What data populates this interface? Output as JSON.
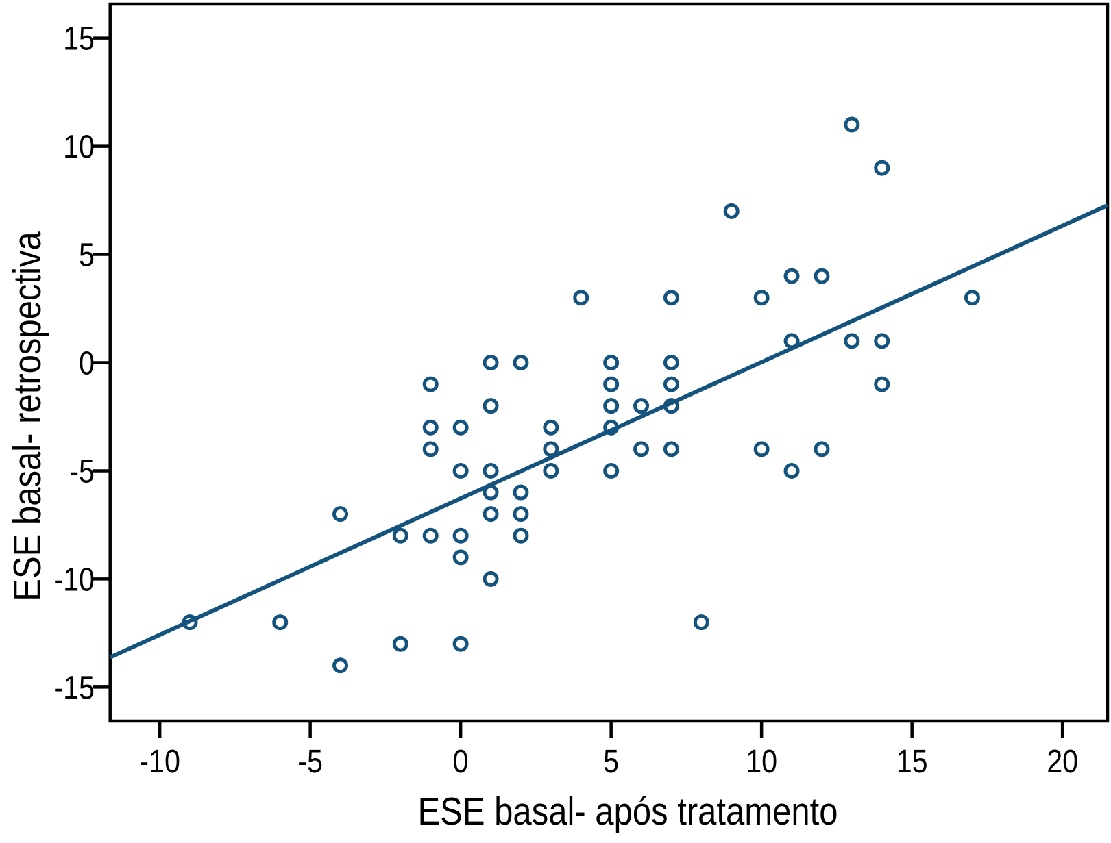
{
  "figure": {
    "background": "#ffffff",
    "axis_color": "#000000",
    "accent_color": "#14537e"
  },
  "chart_data": {
    "type": "scatter",
    "title": "",
    "xlabel": "ESE basal- após tratamento",
    "ylabel": "ESE basal- retrospectiva",
    "x_ticks": [
      -10,
      -5,
      0,
      5,
      10,
      15,
      20
    ],
    "y_ticks": [
      15,
      10,
      5,
      0,
      -5,
      -10,
      -15
    ],
    "xlim": [
      -11.65,
      21.5
    ],
    "ylim": [
      -16.57,
      16.57
    ],
    "grid": false,
    "legend": "none",
    "marker": {
      "shape": "open-circle",
      "color": "#14537e",
      "radius": 9,
      "stroke_width": 5
    },
    "regression_line": {
      "x1": -11.65,
      "y1": -13.62,
      "x2": 21.5,
      "y2": 7.27,
      "color": "#14537e",
      "width": 6
    },
    "points": [
      [
        13,
        11
      ],
      [
        14,
        9
      ],
      [
        9,
        7
      ],
      [
        11,
        4
      ],
      [
        12,
        4
      ],
      [
        4,
        3
      ],
      [
        7,
        3
      ],
      [
        10,
        3
      ],
      [
        17,
        3
      ],
      [
        11,
        1
      ],
      [
        13,
        1
      ],
      [
        14,
        1
      ],
      [
        1,
        0
      ],
      [
        2,
        0
      ],
      [
        5,
        0
      ],
      [
        7,
        0
      ],
      [
        -1,
        -1
      ],
      [
        5,
        -1
      ],
      [
        7,
        -1
      ],
      [
        14,
        -1
      ],
      [
        1,
        -2
      ],
      [
        5,
        -2
      ],
      [
        6,
        -2
      ],
      [
        7,
        -2
      ],
      [
        -1,
        -3
      ],
      [
        0,
        -3
      ],
      [
        3,
        -3
      ],
      [
        5,
        -3
      ],
      [
        -1,
        -4
      ],
      [
        3,
        -4
      ],
      [
        6,
        -4
      ],
      [
        7,
        -4
      ],
      [
        10,
        -4
      ],
      [
        12,
        -4
      ],
      [
        0,
        -5
      ],
      [
        1,
        -5
      ],
      [
        3,
        -5
      ],
      [
        5,
        -5
      ],
      [
        11,
        -5
      ],
      [
        1,
        -6
      ],
      [
        2,
        -6
      ],
      [
        -4,
        -7
      ],
      [
        1,
        -7
      ],
      [
        2,
        -7
      ],
      [
        -2,
        -8
      ],
      [
        -1,
        -8
      ],
      [
        0,
        -8
      ],
      [
        2,
        -8
      ],
      [
        0,
        -9
      ],
      [
        1,
        -10
      ],
      [
        -9,
        -12
      ],
      [
        -6,
        -12
      ],
      [
        8,
        -12
      ],
      [
        -2,
        -13
      ],
      [
        0,
        -13
      ],
      [
        -4,
        -14
      ]
    ]
  }
}
